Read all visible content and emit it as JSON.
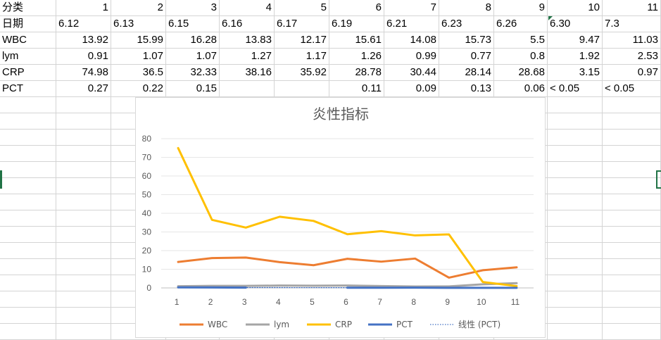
{
  "sheet": {
    "rows": [
      [
        "分类",
        "1",
        "2",
        "3",
        "4",
        "5",
        "6",
        "7",
        "8",
        "9",
        "10",
        "11"
      ],
      [
        "日期",
        "6.12",
        "6.13",
        "6.15",
        "6.16",
        "6.17",
        "6.19",
        "6.21",
        "6.23",
        "6.26",
        "6.30",
        "7.3"
      ],
      [
        "WBC",
        "13.92",
        "15.99",
        "16.28",
        "13.83",
        "12.17",
        "15.61",
        "14.08",
        "15.73",
        "5.5",
        "9.47",
        "11.03"
      ],
      [
        "lym",
        "0.91",
        "1.07",
        "1.07",
        "1.27",
        "1.17",
        "1.26",
        "0.99",
        "0.77",
        "0.8",
        "1.92",
        "2.53"
      ],
      [
        "CRP",
        "74.98",
        "36.5",
        "32.33",
        "38.16",
        "35.92",
        "28.78",
        "30.44",
        "28.14",
        "28.68",
        "3.15",
        "0.97"
      ],
      [
        "PCT",
        "0.27",
        "0.22",
        "0.15",
        "",
        "",
        "0.11",
        "0.09",
        "0.13",
        "0.06",
        "< 0.05",
        "< 0.05"
      ]
    ]
  },
  "chart_data": {
    "type": "line",
    "title": "炎性指标",
    "categories": [
      "1",
      "2",
      "3",
      "4",
      "5",
      "6",
      "7",
      "8",
      "9",
      "10",
      "11"
    ],
    "ylim": [
      0,
      80
    ],
    "yticks": [
      "0",
      "10",
      "20",
      "30",
      "40",
      "50",
      "60",
      "70",
      "80"
    ],
    "grid": true,
    "legend_position": "bottom",
    "series": [
      {
        "name": "WBC",
        "color": "#ed7d31",
        "values": [
          13.92,
          15.99,
          16.28,
          13.83,
          12.17,
          15.61,
          14.08,
          15.73,
          5.5,
          9.47,
          11.03
        ]
      },
      {
        "name": "lym",
        "color": "#a5a5a5",
        "values": [
          0.91,
          1.07,
          1.07,
          1.27,
          1.17,
          1.26,
          0.99,
          0.77,
          0.8,
          1.92,
          2.53
        ]
      },
      {
        "name": "CRP",
        "color": "#ffc000",
        "values": [
          74.98,
          36.5,
          32.33,
          38.16,
          35.92,
          28.78,
          30.44,
          28.14,
          28.68,
          3.15,
          0.97
        ]
      },
      {
        "name": "PCT",
        "color": "#4472c4",
        "values": [
          0.27,
          0.22,
          0.15,
          null,
          null,
          0.11,
          0.09,
          0.13,
          0.06,
          0.05,
          0.05
        ]
      },
      {
        "name": "线性 (PCT)",
        "color": "#4472c4",
        "style": "dotted",
        "values": [
          0.24,
          0.22,
          0.2,
          0.18,
          0.16,
          0.14,
          0.12,
          0.1,
          0.08,
          0.06,
          0.04
        ]
      }
    ]
  }
}
